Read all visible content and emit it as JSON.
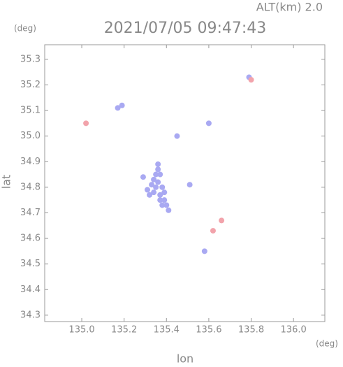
{
  "chart_data": {
    "type": "scatter",
    "title": "2021/07/05 09:47:43",
    "subtitle": "ALT(km) 2.0",
    "x_label": "lon",
    "y_label": "lat",
    "x_unit": "(deg)",
    "y_unit": "(deg)",
    "xlim": [
      134.825,
      136.148
    ],
    "ylim": [
      34.275,
      35.357
    ],
    "xticks": [
      {
        "value": 135,
        "label": "135.0"
      },
      135.2,
      135.4,
      135.6,
      135.8,
      {
        "value": 136,
        "label": "136.0"
      }
    ],
    "yticks": [
      34.3,
      34.4,
      34.5,
      34.6,
      34.7,
      34.8,
      34.9,
      {
        "value": 35,
        "label": "35.0"
      },
      35.1,
      35.2,
      35.3
    ],
    "series": [
      {
        "color": "#a9a9f2",
        "x": [
          135.36,
          135.36,
          135.35,
          135.37,
          135.34,
          135.36,
          135.33,
          135.35,
          135.38,
          135.31,
          135.32,
          135.34,
          135.37,
          135.39,
          135.37,
          135.39,
          135.4,
          135.41,
          135.38,
          135.17,
          135.19,
          135.6,
          135.79,
          135.58,
          135.51,
          135.45,
          135.29
        ],
        "y": [
          34.89,
          34.87,
          34.85,
          34.85,
          34.83,
          34.82,
          34.81,
          34.8,
          34.8,
          34.79,
          34.77,
          34.78,
          34.77,
          34.78,
          34.75,
          34.75,
          34.73,
          34.71,
          34.73,
          35.11,
          35.12,
          35.05,
          35.23,
          34.55,
          34.81,
          35.0,
          34.84
        ]
      },
      {
        "color": "#f2a3ab",
        "x": [
          135.8,
          135.02,
          135.62,
          135.66
        ],
        "y": [
          35.22,
          35.05,
          34.63,
          34.67
        ]
      }
    ]
  }
}
